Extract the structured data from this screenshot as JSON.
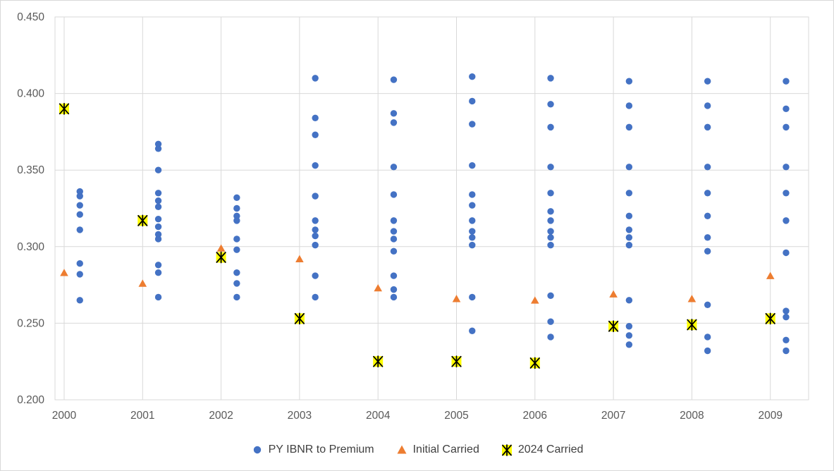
{
  "chart_data": {
    "type": "scatter",
    "title": "",
    "xlabel": "",
    "ylabel": "",
    "grid": true,
    "legend_position": "bottom",
    "x_axis": {
      "tick_labels": [
        "2000",
        "2001",
        "2002",
        "2003",
        "2004",
        "2005",
        "2006",
        "2007",
        "2008",
        "2009"
      ]
    },
    "y_axis": {
      "min": 0.2,
      "max": 0.45,
      "step": 0.05,
      "tick_labels": [
        "0.200",
        "0.250",
        "0.300",
        "0.350",
        "0.400",
        "0.450"
      ]
    },
    "colors": {
      "grid": "#d9d9d9",
      "axis_text": "#595959",
      "legend_text": "#404040",
      "background": "#ffffff"
    },
    "series": [
      {
        "name": "PY IBNR to Premium",
        "marker": "circle",
        "color": "#4472C4",
        "x_offset": 0.2,
        "values_by_year": [
          [
            0.336,
            0.333,
            0.327,
            0.321,
            0.311,
            0.289,
            0.282,
            0.265
          ],
          [
            0.367,
            0.364,
            0.35,
            0.335,
            0.33,
            0.326,
            0.318,
            0.313,
            0.308,
            0.305,
            0.288,
            0.283,
            0.267
          ],
          [
            0.332,
            0.325,
            0.32,
            0.317,
            0.305,
            0.298,
            0.283,
            0.276,
            0.267
          ],
          [
            0.41,
            0.384,
            0.373,
            0.353,
            0.333,
            0.317,
            0.311,
            0.307,
            0.301,
            0.281,
            0.267
          ],
          [
            0.409,
            0.387,
            0.381,
            0.352,
            0.334,
            0.317,
            0.31,
            0.305,
            0.297,
            0.281,
            0.272,
            0.267
          ],
          [
            0.411,
            0.395,
            0.38,
            0.353,
            0.334,
            0.327,
            0.317,
            0.31,
            0.306,
            0.301,
            0.267,
            0.245
          ],
          [
            0.41,
            0.393,
            0.378,
            0.352,
            0.335,
            0.323,
            0.317,
            0.31,
            0.306,
            0.301,
            0.268,
            0.251,
            0.241
          ],
          [
            0.408,
            0.392,
            0.378,
            0.352,
            0.335,
            0.32,
            0.311,
            0.306,
            0.301,
            0.265,
            0.248,
            0.242,
            0.236
          ],
          [
            0.408,
            0.392,
            0.378,
            0.352,
            0.335,
            0.32,
            0.306,
            0.297,
            0.262,
            0.241,
            0.232
          ],
          [
            0.408,
            0.39,
            0.378,
            0.352,
            0.335,
            0.317,
            0.296,
            0.258,
            0.254,
            0.239,
            0.232
          ]
        ]
      },
      {
        "name": "Initial Carried",
        "marker": "triangle",
        "color": "#ED7D31",
        "x_offset": 0,
        "values_by_year": [
          0.283,
          0.276,
          0.299,
          0.292,
          0.273,
          0.266,
          0.265,
          0.269,
          0.266,
          0.281
        ]
      },
      {
        "name": "2024 Carried",
        "marker": "asterisk-square",
        "color": "#FFFF00",
        "stroke": "#000000",
        "x_offset": 0,
        "values_by_year": [
          0.39,
          0.317,
          0.293,
          0.253,
          0.225,
          0.225,
          0.224,
          0.248,
          0.249,
          0.253
        ]
      }
    ]
  }
}
